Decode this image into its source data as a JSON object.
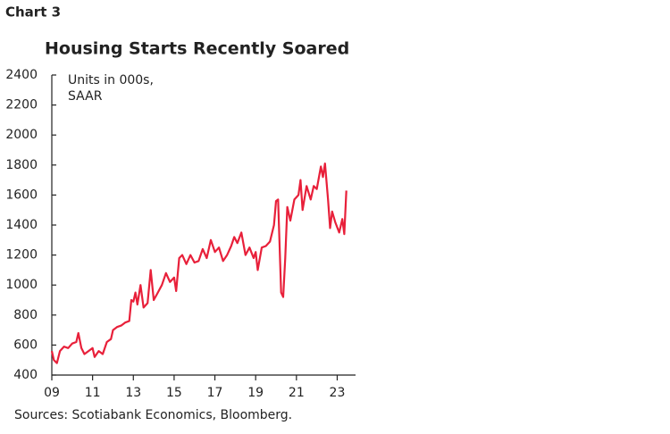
{
  "chart_data": {
    "type": "line",
    "label": "Chart 3",
    "title": "Housing Starts Recently Soared",
    "annotations": [
      "Units in 000s,",
      "SAAR"
    ],
    "source": "Sources: Scotiabank Economics, Bloomberg.",
    "x": [
      9.0,
      9.1,
      9.25,
      9.4,
      9.6,
      9.8,
      10.0,
      10.2,
      10.3,
      10.45,
      10.6,
      10.8,
      11.0,
      11.1,
      11.3,
      11.5,
      11.7,
      11.9,
      12.0,
      12.2,
      12.4,
      12.6,
      12.8,
      12.9,
      13.0,
      13.1,
      13.2,
      13.35,
      13.5,
      13.7,
      13.85,
      14.0,
      14.2,
      14.4,
      14.6,
      14.8,
      15.0,
      15.1,
      15.25,
      15.4,
      15.6,
      15.8,
      16.0,
      16.2,
      16.4,
      16.6,
      16.8,
      17.0,
      17.2,
      17.4,
      17.6,
      17.8,
      17.95,
      18.1,
      18.3,
      18.5,
      18.7,
      18.9,
      19.0,
      19.1,
      19.3,
      19.5,
      19.7,
      19.9,
      20.0,
      20.1,
      20.25,
      20.35,
      20.45,
      20.55,
      20.7,
      20.9,
      21.1,
      21.2,
      21.3,
      21.5,
      21.7,
      21.85,
      22.0,
      22.2,
      22.3,
      22.4,
      22.55,
      22.65,
      22.75,
      22.9,
      23.1,
      23.25,
      23.35,
      23.45
    ],
    "series": [
      {
        "name": "Housing starts",
        "color": "#e8203a",
        "values": [
          560,
          500,
          480,
          560,
          590,
          580,
          610,
          620,
          680,
          580,
          540,
          560,
          580,
          520,
          560,
          540,
          620,
          640,
          700,
          720,
          730,
          750,
          760,
          900,
          890,
          950,
          870,
          1000,
          850,
          880,
          1100,
          900,
          950,
          1000,
          1080,
          1020,
          1050,
          960,
          1180,
          1200,
          1140,
          1200,
          1150,
          1160,
          1240,
          1180,
          1300,
          1220,
          1250,
          1160,
          1200,
          1260,
          1320,
          1280,
          1350,
          1200,
          1250,
          1180,
          1220,
          1100,
          1250,
          1260,
          1290,
          1400,
          1560,
          1570,
          950,
          920,
          1180,
          1520,
          1430,
          1570,
          1600,
          1700,
          1500,
          1660,
          1570,
          1660,
          1640,
          1790,
          1720,
          1810,
          1570,
          1380,
          1490,
          1420,
          1350,
          1440,
          1340,
          1630
        ]
      }
    ],
    "xlim": [
      9,
      23.9
    ],
    "xticks": [
      {
        "value": 9,
        "label": "09"
      },
      11,
      13,
      15,
      17,
      19,
      21,
      23
    ],
    "ylim": [
      400,
      2400
    ],
    "yticks": [
      400,
      600,
      800,
      1000,
      1200,
      1400,
      1600,
      1800,
      2000,
      2200,
      2400
    ],
    "grid": false
  }
}
